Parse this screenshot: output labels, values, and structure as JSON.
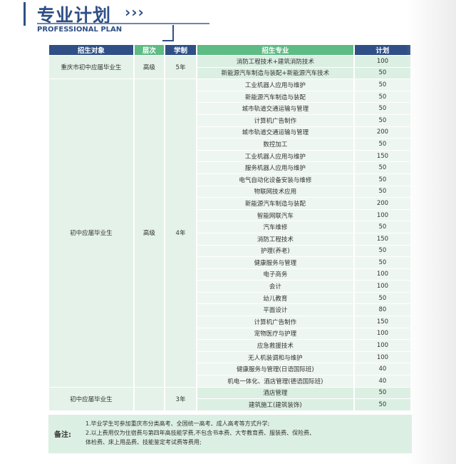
{
  "header": {
    "title": "专业计划",
    "chevrons": "›››",
    "subtitle": "PROFESSIONAL PLAN"
  },
  "table": {
    "columns": [
      "招生对象",
      "层次",
      "学制",
      "招生专业",
      "计划"
    ],
    "groups": [
      {
        "target": "重庆市初中应届毕业生",
        "level": "高级",
        "years": "5年",
        "rows": [
          {
            "major": "消防工程技术+建筑消防技术",
            "plan": "100"
          },
          {
            "major": "新能源汽车制造与装配+新能源汽车技术",
            "plan": "50"
          }
        ]
      },
      {
        "target": "初中应届毕业生",
        "level": "高级",
        "years": "4年",
        "rows": [
          {
            "major": "工业机器人应用与维护",
            "plan": "50"
          },
          {
            "major": "新能源汽车制造与装配",
            "plan": "50"
          },
          {
            "major": "城市轨道交通运输与管理",
            "plan": "50"
          },
          {
            "major": "计算机广告制作",
            "plan": "50"
          },
          {
            "major": "城市轨道交通运输与管理",
            "plan": "200"
          },
          {
            "major": "数控加工",
            "plan": "50"
          },
          {
            "major": "工业机器人应用与维护",
            "plan": "150"
          },
          {
            "major": "服务机器人应用与维护",
            "plan": "50"
          },
          {
            "major": "电气自动化设备安装与维修",
            "plan": "50"
          },
          {
            "major": "物联网技术应用",
            "plan": "50"
          },
          {
            "major": "新能源汽车制造与装配",
            "plan": "200"
          },
          {
            "major": "智能网联汽车",
            "plan": "100"
          },
          {
            "major": "汽车维修",
            "plan": "50"
          },
          {
            "major": "消防工程技术",
            "plan": "150"
          },
          {
            "major": "护理(养老)",
            "plan": "50"
          },
          {
            "major": "健康服务与管理",
            "plan": "50"
          },
          {
            "major": "电子商务",
            "plan": "100"
          },
          {
            "major": "会计",
            "plan": "100"
          },
          {
            "major": "幼儿教育",
            "plan": "50"
          },
          {
            "major": "平面设计",
            "plan": "80"
          },
          {
            "major": "计算机广告制作",
            "plan": "150"
          },
          {
            "major": "宠物医疗与护理",
            "plan": "100"
          },
          {
            "major": "应急救援技术",
            "plan": "100"
          },
          {
            "major": "无人机装调和与维护",
            "plan": "100"
          },
          {
            "major": "健康服务与管理(日语国际班)",
            "plan": "40"
          },
          {
            "major": "机电一体化、酒店管理(德语国际班)",
            "plan": "40"
          }
        ]
      },
      {
        "target": "初中应届毕业生",
        "level": "",
        "years": "3年",
        "rows": [
          {
            "major": "酒店管理",
            "plan": "50"
          },
          {
            "major": "建筑施工(建筑装饰)",
            "plan": "50"
          }
        ]
      }
    ]
  },
  "notes": {
    "label": "备注:",
    "lines": [
      "1.毕业学生可参加重庆市分类高考、全国统一高考、成人高考等方式升学;",
      "2.以上费用仅为住宿费与第四年高技能学费,不包含书本费、大专教育费、服装费、保险费、",
      "体检费、床上用品费、技能鉴定考试费等费用;"
    ]
  },
  "colors": {
    "navy": "#2f4f86",
    "green": "#5dbb84",
    "row_tint": "#dcefe3",
    "row_light": "#eef6f1"
  }
}
